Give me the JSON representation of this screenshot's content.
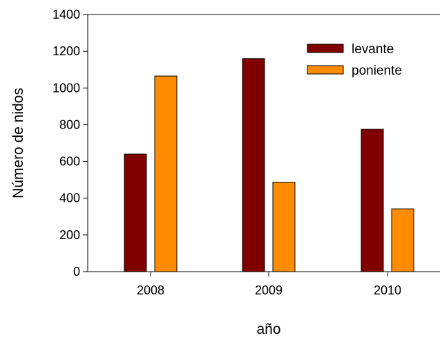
{
  "chart_data": {
    "type": "bar",
    "categories": [
      "2008",
      "2009",
      "2010"
    ],
    "series": [
      {
        "name": "levante",
        "values": [
          640,
          1160,
          775
        ],
        "color": "#800000"
      },
      {
        "name": "poniente",
        "values": [
          1065,
          487,
          342
        ],
        "color": "#ff8c00"
      }
    ],
    "xlabel": "año",
    "ylabel": "Número de nidos",
    "ylim": [
      0,
      1400
    ],
    "yticks": [
      "0",
      "200",
      "400",
      "600",
      "800",
      "1000",
      "1200",
      "1400"
    ],
    "grid": false,
    "legend_position": "top-right"
  }
}
